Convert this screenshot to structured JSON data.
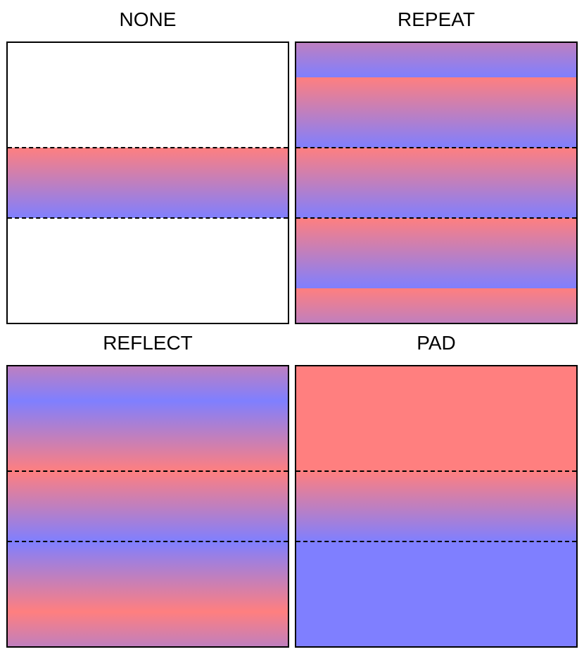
{
  "colors": {
    "start": "#ff7f7f",
    "end": "#7f7fff"
  },
  "panels": {
    "none": {
      "title": "NONE"
    },
    "repeat": {
      "title": "REPEAT"
    },
    "reflect": {
      "title": "REFLECT"
    },
    "pad": {
      "title": "PAD"
    }
  }
}
